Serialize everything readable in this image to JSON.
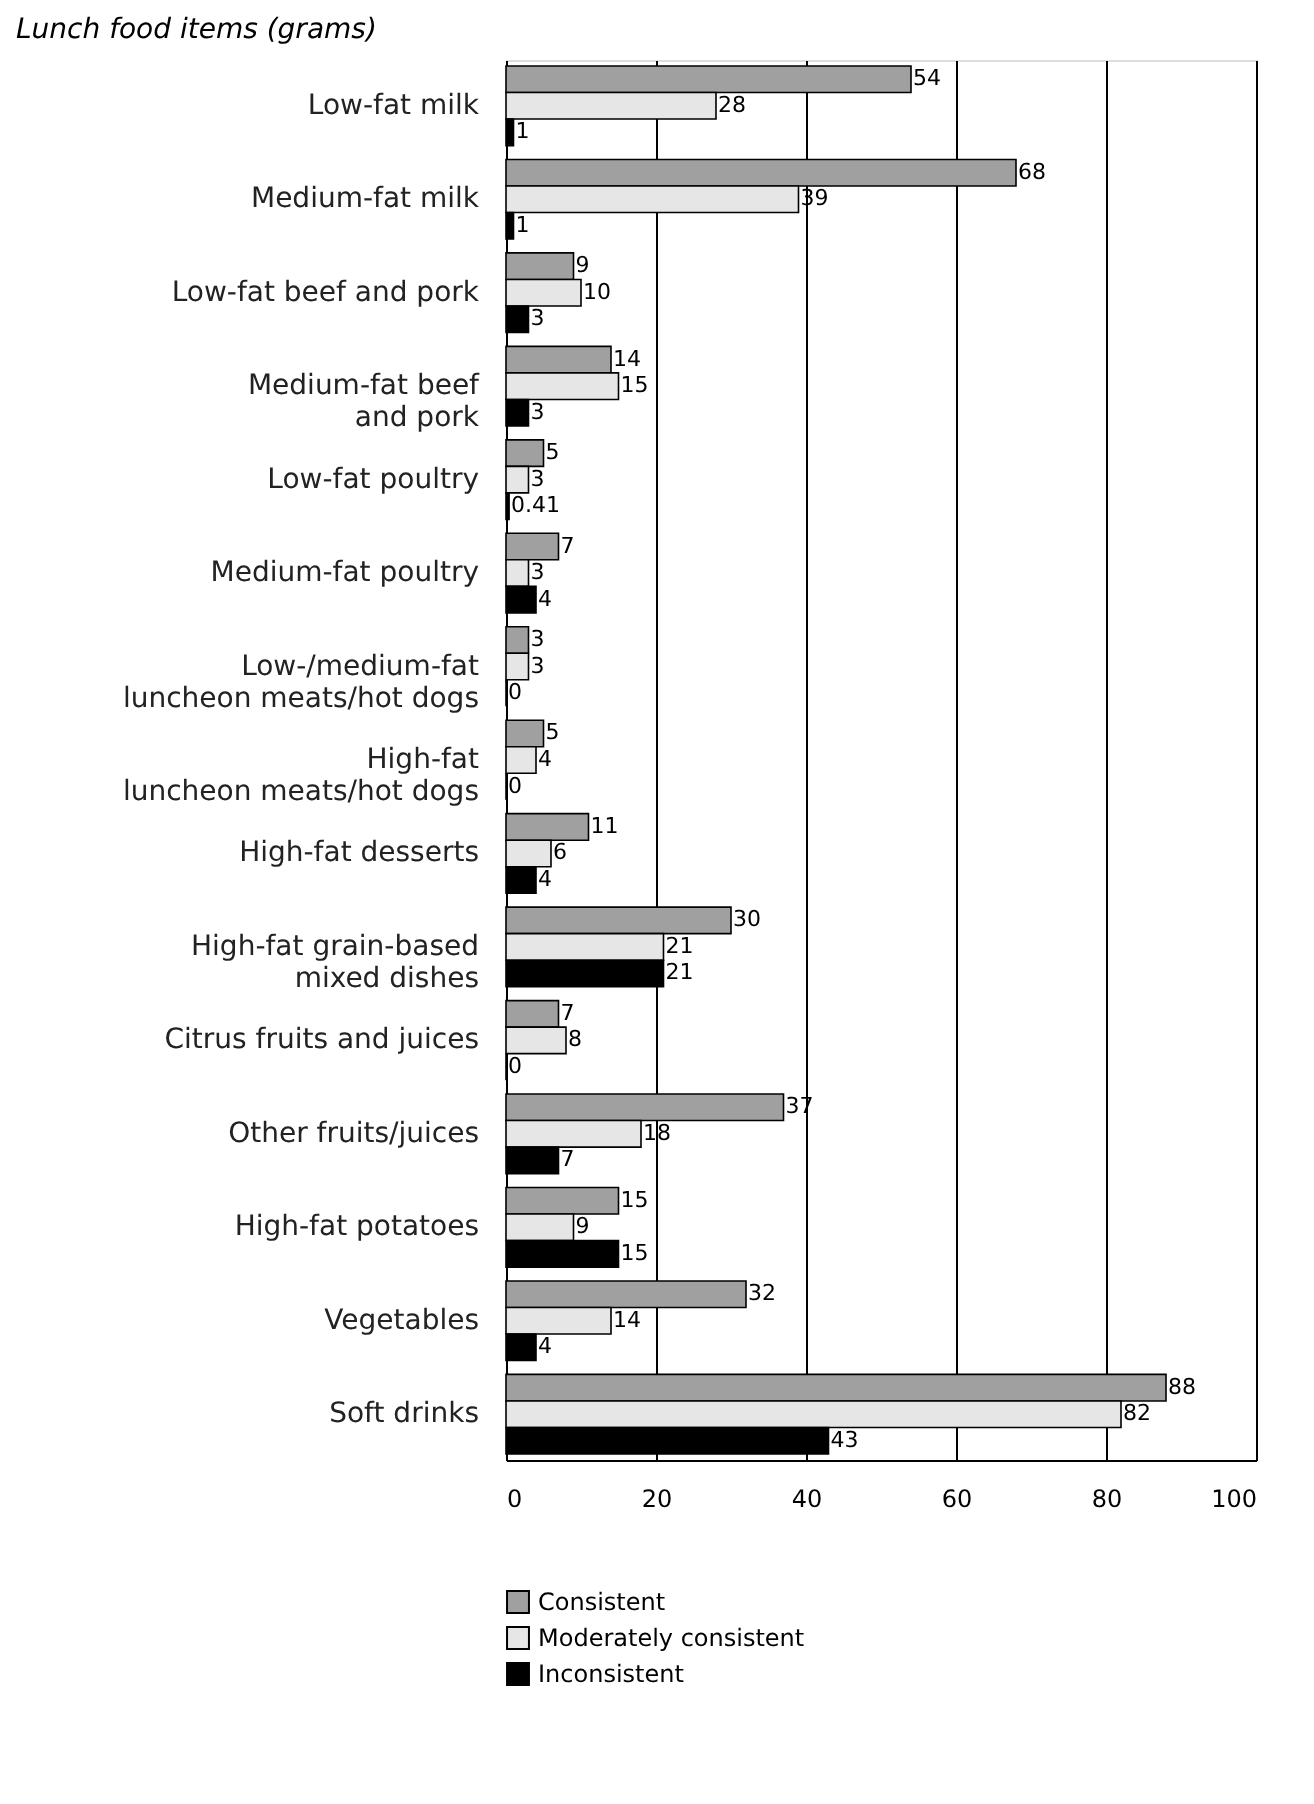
{
  "chart_data": {
    "type": "bar",
    "orientation": "horizontal",
    "title": "Lunch food items (grams)",
    "categories": [
      "Low-fat milk",
      "Medium-fat milk",
      "Low-fat beef and pork",
      "Medium-fat beef\nand pork",
      "Low-fat poultry",
      "Medium-fat poultry",
      "Low-/medium-fat\nluncheon meats/hot dogs",
      "High-fat\nluncheon meats/hot dogs",
      "High-fat desserts",
      "High-fat grain-based\nmixed dishes",
      "Citrus fruits and juices",
      "Other fruits/juices",
      "High-fat potatoes",
      "Vegetables",
      "Soft drinks"
    ],
    "series": [
      {
        "name": "Consistent",
        "color": "#a0a0a0",
        "values": [
          54,
          68,
          9,
          14,
          5,
          7,
          3,
          5,
          11,
          30,
          7,
          37,
          15,
          32,
          88
        ]
      },
      {
        "name": "Moderately consistent",
        "color": "#e6e6e6",
        "values": [
          28,
          39,
          10,
          15,
          3,
          3,
          3,
          4,
          6,
          21,
          8,
          18,
          9,
          14,
          82
        ]
      },
      {
        "name": "Inconsistent",
        "color": "#000000",
        "values": [
          1,
          1,
          3,
          3,
          0.41,
          4,
          0,
          0,
          4,
          21,
          0,
          7,
          15,
          4,
          43
        ]
      }
    ],
    "xlim": [
      0,
      100
    ],
    "xticks": [
      0,
      20,
      40,
      60,
      80,
      100
    ],
    "grid": "x",
    "legend": "bottom",
    "data_labels": true
  }
}
